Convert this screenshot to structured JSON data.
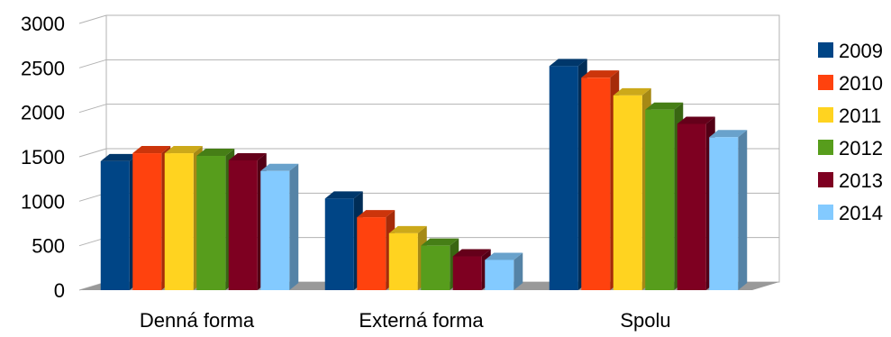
{
  "chart_data": {
    "type": "bar",
    "title": "",
    "xlabel": "",
    "ylabel": "",
    "categories": [
      "Denná forma",
      "Externá forma",
      "Spolu"
    ],
    "series": [
      {
        "name": "2009",
        "color": "#004586",
        "values": [
          1450,
          1030,
          2520
        ]
      },
      {
        "name": "2010",
        "color": "#ff420e",
        "values": [
          1540,
          820,
          2390
        ]
      },
      {
        "name": "2011",
        "color": "#ffd320",
        "values": [
          1540,
          640,
          2190
        ]
      },
      {
        "name": "2012",
        "color": "#579d1c",
        "values": [
          1510,
          500,
          2030
        ]
      },
      {
        "name": "2013",
        "color": "#7e0021",
        "values": [
          1460,
          380,
          1870
        ]
      },
      {
        "name": "2014",
        "color": "#83caff",
        "values": [
          1340,
          340,
          1720
        ]
      }
    ],
    "ylim": [
      0,
      3000
    ],
    "yticks": [
      "0",
      "500",
      "1000",
      "1500",
      "2000",
      "2500",
      "3000"
    ],
    "grid": true,
    "legend": "right",
    "style": "3d-bar"
  }
}
